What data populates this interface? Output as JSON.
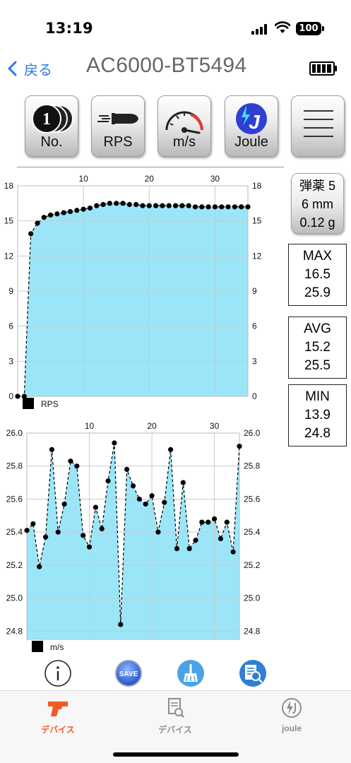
{
  "status_bar": {
    "time": "13:19",
    "battery": "100"
  },
  "nav": {
    "back_label": "戻る",
    "title": "AC6000-BT5494"
  },
  "toolbar": {
    "buttons": [
      {
        "label": "No.",
        "icon": "shot-count-icon"
      },
      {
        "label": "RPS",
        "icon": "bullet-icon"
      },
      {
        "label": "m/s",
        "icon": "speedometer-icon"
      },
      {
        "label": "Joule",
        "icon": "joule-icon"
      },
      {
        "label": "",
        "icon": "menu-icon"
      }
    ]
  },
  "ammo": {
    "line1": "弾薬 5",
    "line2": "6 mm",
    "line3": "0.12 g"
  },
  "stats": {
    "max": {
      "label": "MAX",
      "rps": "16.5",
      "speed": "25.9"
    },
    "avg": {
      "label": "AVG",
      "rps": "15.2",
      "speed": "25.5"
    },
    "min": {
      "label": "MIN",
      "rps": "13.9",
      "speed": "24.8"
    }
  },
  "colors": {
    "fill": "#9ae6f8",
    "accent_blue": "#2a7ae4",
    "tab_active": "#f05a22",
    "tab_inactive": "#8e8e8e"
  },
  "chart_data": [
    {
      "type": "area",
      "legend": "RPS",
      "x_ticks": [
        10,
        20,
        30
      ],
      "y_ticks": [
        0,
        3,
        6,
        9,
        12,
        15,
        18
      ],
      "xlim": [
        0,
        35
      ],
      "ylim": [
        0,
        18
      ],
      "grid": true,
      "x": [
        0,
        1,
        2,
        3,
        4,
        5,
        6,
        7,
        8,
        9,
        10,
        11,
        12,
        13,
        14,
        15,
        16,
        17,
        18,
        19,
        20,
        21,
        22,
        23,
        24,
        25,
        26,
        27,
        28,
        29,
        30,
        31,
        32,
        33,
        34,
        35
      ],
      "values": [
        0,
        0,
        13.9,
        14.8,
        15.3,
        15.5,
        15.6,
        15.7,
        15.8,
        15.9,
        16.0,
        16.1,
        16.3,
        16.4,
        16.5,
        16.5,
        16.5,
        16.4,
        16.4,
        16.3,
        16.3,
        16.3,
        16.3,
        16.3,
        16.3,
        16.3,
        16.3,
        16.2,
        16.2,
        16.2,
        16.2,
        16.2,
        16.2,
        16.2,
        16.2,
        16.2
      ]
    },
    {
      "type": "area",
      "legend": "m/s",
      "x_ticks": [
        10,
        20,
        30
      ],
      "y_ticks": [
        "24.8",
        "25.0",
        "25.2",
        "25.4",
        "25.6",
        "25.8",
        "26.0"
      ],
      "xlim": [
        0,
        34
      ],
      "ylim": [
        24.75,
        26.0
      ],
      "grid": true,
      "x": [
        0,
        1,
        2,
        3,
        4,
        5,
        6,
        7,
        8,
        9,
        10,
        11,
        12,
        13,
        14,
        15,
        16,
        17,
        18,
        19,
        20,
        21,
        22,
        23,
        24,
        25,
        26,
        27,
        28,
        29,
        30,
        31,
        32,
        33,
        34
      ],
      "values": [
        25.41,
        25.45,
        25.19,
        25.37,
        25.9,
        25.4,
        25.57,
        25.83,
        25.8,
        25.38,
        25.31,
        25.55,
        25.42,
        25.71,
        25.94,
        24.84,
        25.78,
        25.68,
        25.6,
        25.57,
        25.62,
        25.4,
        25.58,
        25.9,
        25.3,
        25.7,
        25.3,
        25.35,
        25.46,
        25.46,
        25.48,
        25.36,
        25.46,
        25.28,
        25.92
      ]
    }
  ],
  "actions": [
    {
      "icon": "info-icon"
    },
    {
      "icon": "save-icon",
      "label": "SAVE"
    },
    {
      "icon": "clear-brush-icon"
    },
    {
      "icon": "search-document-icon"
    }
  ],
  "tabs": [
    {
      "label": "デバイス",
      "icon": "gun-icon",
      "active": true
    },
    {
      "label": "デバイス",
      "icon": "document-search-icon",
      "active": false
    },
    {
      "label": "joule",
      "icon": "joule-circle-icon",
      "active": false
    }
  ]
}
